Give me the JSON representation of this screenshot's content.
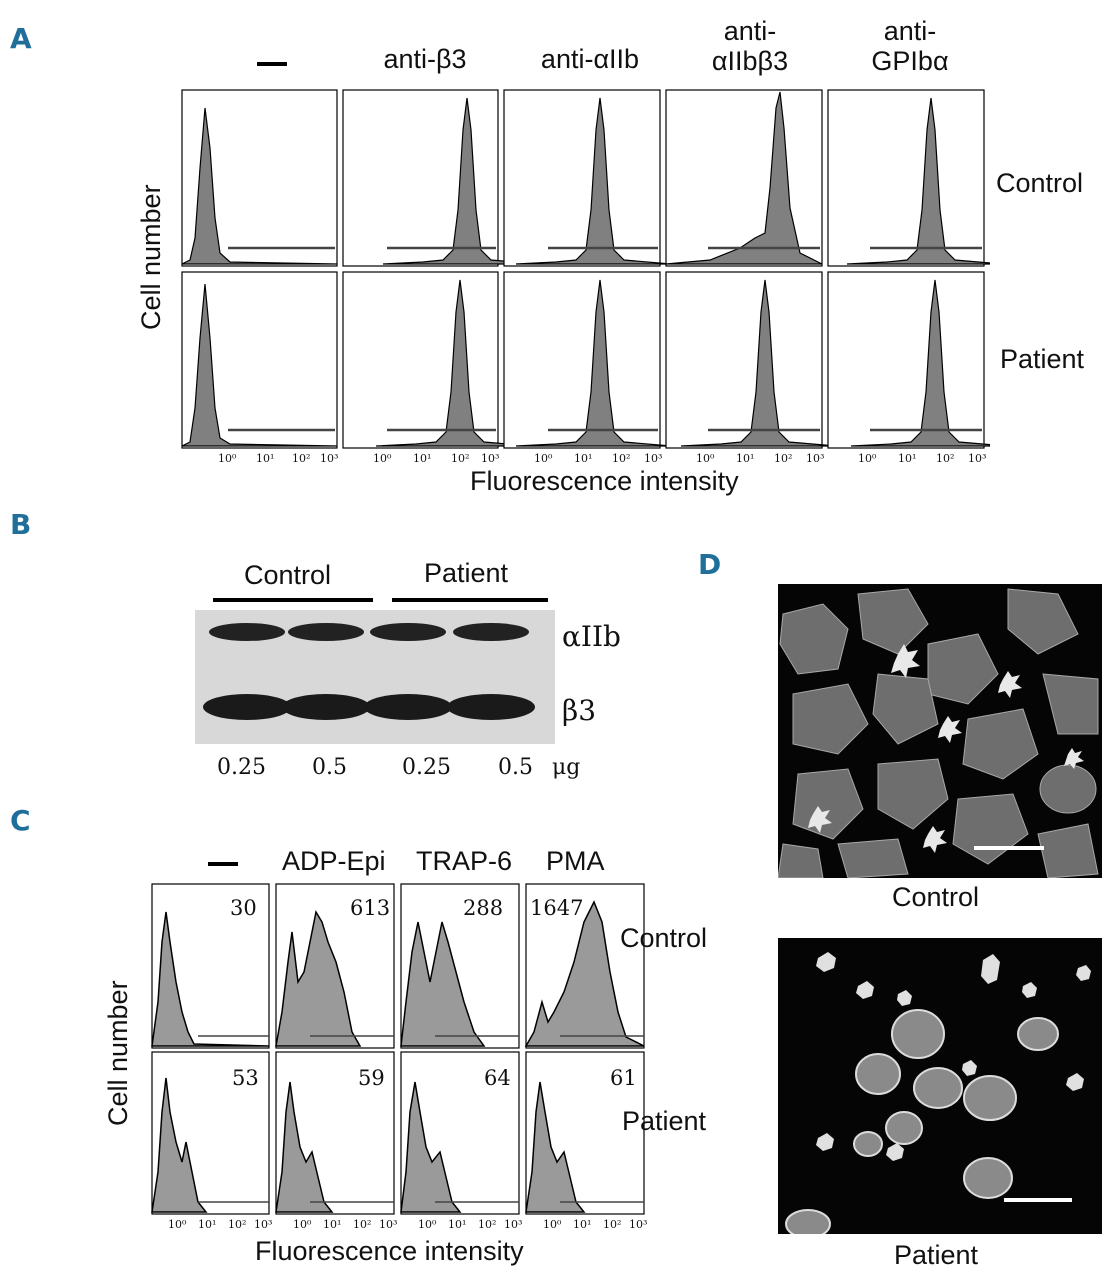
{
  "panelA": {
    "label": "A",
    "columns": [
      "–",
      "anti-β3",
      "anti-αIIb",
      "anti-\nαIIbβ3",
      "anti-\nGPIbα"
    ],
    "rows": [
      "Control",
      "Patient"
    ],
    "y_label": "Cell number",
    "x_label": "Fluorescence intensity",
    "ticks": [
      "10⁰",
      "10¹",
      "10²",
      "10³"
    ]
  },
  "panelB": {
    "label": "B",
    "groups": [
      "Control",
      "Patient"
    ],
    "bands": [
      "αIIb",
      "β3"
    ],
    "amounts": [
      "0.25",
      "0.5",
      "0.25",
      "0.5"
    ],
    "unit": "μg"
  },
  "panelC": {
    "label": "C",
    "columns": [
      "–",
      "ADP-Epi",
      "TRAP-6",
      "PMA"
    ],
    "rows": [
      "Control",
      "Patient"
    ],
    "values": {
      "control": [
        "30",
        "613",
        "288",
        "1647"
      ],
      "patient": [
        "53",
        "59",
        "64",
        "61"
      ]
    },
    "y_label": "Cell number",
    "x_label": "Fluorescence intensity",
    "ticks": [
      "10⁰",
      "10¹",
      "10²",
      "10³"
    ]
  },
  "panelD": {
    "label": "D",
    "captions": [
      "Control",
      "Patient"
    ]
  }
}
